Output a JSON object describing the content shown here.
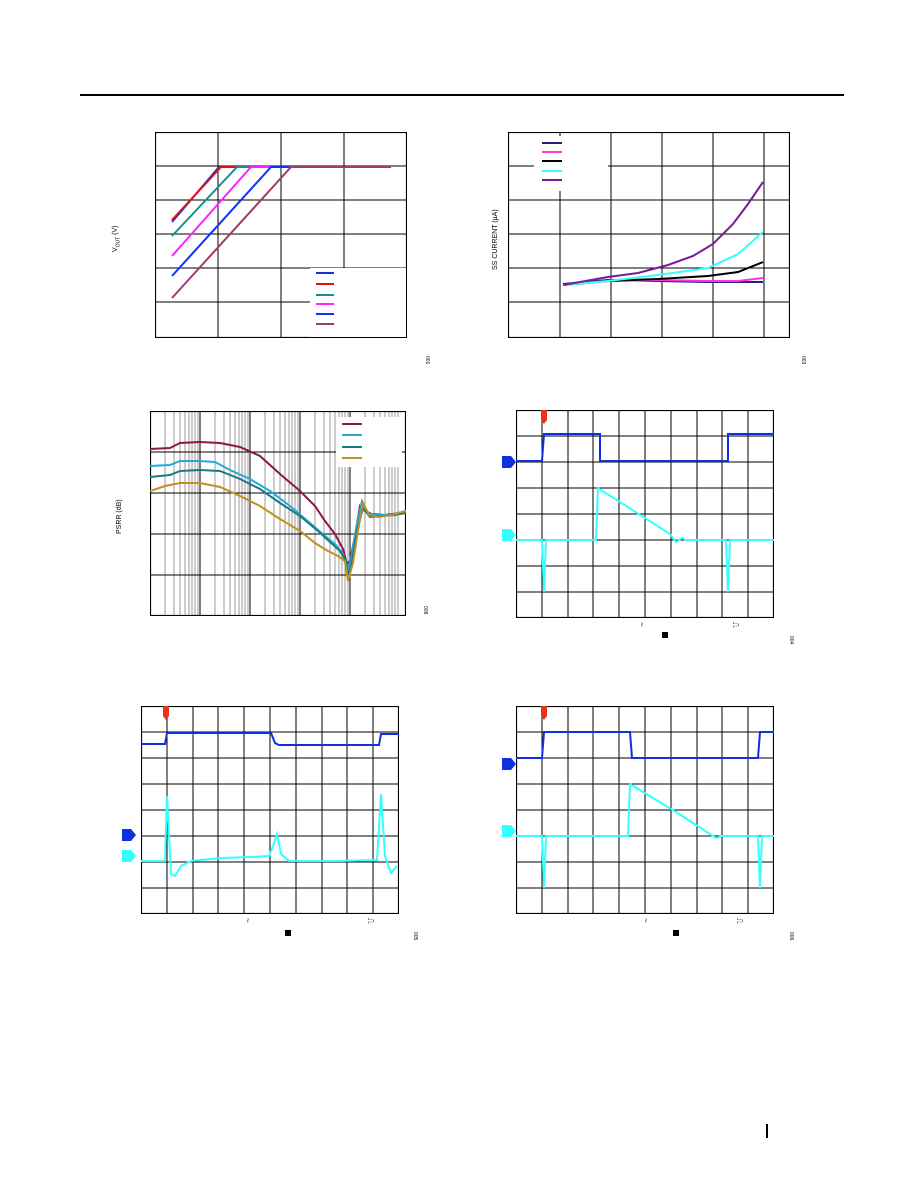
{
  "page": {
    "footer_marker": "|"
  },
  "charts": {
    "vout": {
      "ylabel": "V",
      "ylabel_sub": "OUT",
      "ylabel_unit": " (V)",
      "fignum": "001",
      "legend_colors": [
        "#1f2fd0",
        "#e01010",
        "#1a8c8c",
        "#ff22ff",
        "#1030ff",
        "#a03a6a"
      ]
    },
    "ss": {
      "ylabel": "SS CURRENT (µA)",
      "fignum": "003",
      "legend_colors": [
        "#202080",
        "#ff33dd",
        "#000000",
        "#33ffff",
        "#7a1a9a"
      ]
    },
    "psrr": {
      "ylabel": "PSRR (dB)",
      "fignum": "008",
      "legend_colors": [
        "#8a1a40",
        "#22aadd",
        "#1a7a80",
        "#c09020"
      ]
    },
    "scope1": {
      "fignum": "004",
      "glyph1": "~",
      "glyph2": "⎍"
    },
    "scope2": {
      "fignum": "005",
      "glyph1": "~",
      "glyph2": "⎍"
    },
    "scope3": {
      "fignum": "006",
      "glyph1": "~",
      "glyph2": "⎍"
    }
  }
}
